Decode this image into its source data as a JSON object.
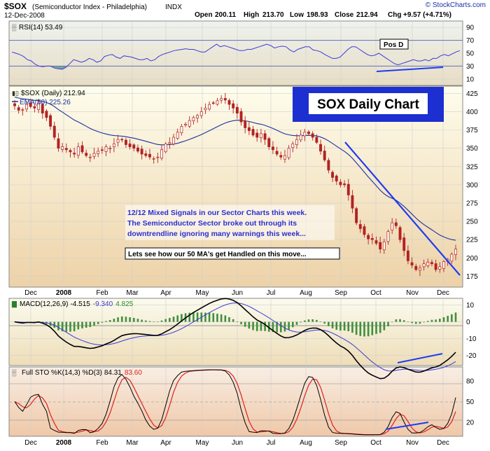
{
  "header": {
    "symbol": "$SOX",
    "name": "(Semiconductor Index - Philadelphia)",
    "exchange": "INDX",
    "date": "12-Dec-2008",
    "open_label": "Open",
    "open": "200.11",
    "high_label": "High",
    "high": "213.70",
    "low_label": "Low",
    "low": "198.93",
    "close_label": "Close",
    "close": "212.94",
    "chg_label": "Chg",
    "chg": "+9.57 (+4.71%)",
    "watermark": "© StockCharts.com"
  },
  "chart_data": [
    {
      "type": "line",
      "panel": "RSI",
      "legend": "RSI(14) 53.49",
      "yticks": [
        90,
        70,
        50,
        30,
        10
      ],
      "ylim": [
        0,
        100
      ],
      "reference_lines": [
        70,
        30
      ],
      "annotation": "Pos D",
      "series": [
        {
          "name": "RSI(14)",
          "values": [
            52,
            50,
            48,
            45,
            40,
            38,
            33,
            30,
            29,
            30,
            30,
            27,
            26,
            25,
            28,
            34,
            40,
            38,
            36,
            38,
            42,
            40,
            36,
            38,
            45,
            47,
            48,
            44,
            42,
            46,
            45,
            44,
            42,
            40,
            40,
            42,
            38,
            40,
            45,
            48,
            50,
            52,
            54,
            55,
            56,
            57,
            56,
            56,
            54,
            52,
            52,
            56,
            60,
            64,
            60,
            62,
            60,
            58,
            56,
            54,
            54,
            56,
            56,
            58,
            60,
            62,
            64,
            62,
            58,
            60,
            61,
            60,
            55,
            52,
            56,
            58,
            60,
            60,
            55,
            54,
            52,
            48,
            45,
            42,
            42,
            44,
            50,
            56,
            60,
            60,
            56,
            52,
            48,
            46,
            47,
            50,
            46,
            42,
            38,
            34,
            32,
            34,
            36,
            38,
            40,
            38,
            38,
            40,
            38,
            42,
            42,
            46,
            48,
            46,
            49,
            52,
            54
          ]
        }
      ]
    },
    {
      "type": "candlestick",
      "panel": "Price",
      "legend": "$SOX (Daily) 212.94",
      "ma_legend": "EMA(50) 225.26",
      "title_box": "SOX Daily Chart",
      "yticks": [
        425,
        400,
        375,
        350,
        325,
        300,
        275,
        250,
        225,
        200,
        175
      ],
      "ylim": [
        160,
        435
      ],
      "x_labels": [
        "Dec",
        "2008",
        "Feb",
        "Mar",
        "Apr",
        "May",
        "Jun",
        "Jul",
        "Aug",
        "Sep",
        "Oct",
        "Nov",
        "Dec"
      ],
      "annotation_main": [
        "12/12  Mixed Signals in our Sector Charts this week.",
        "The Semiconductor Sector broke out through its",
        "downtrendline ignoring many warnings this week..."
      ],
      "annotation_small": "Lets see how our 50 MA's get Handled on this move...",
      "close_values": [
        408,
        402,
        403,
        410,
        407,
        405,
        412,
        398,
        392,
        380,
        365,
        350,
        352,
        348,
        345,
        342,
        352,
        345,
        340,
        338,
        343,
        346,
        347,
        352,
        350,
        356,
        362,
        362,
        355,
        352,
        350,
        346,
        342,
        340,
        338,
        336,
        338,
        348,
        356,
        358,
        365,
        372,
        380,
        383,
        388,
        392,
        395,
        400,
        405,
        410,
        412,
        415,
        418,
        416,
        410,
        405,
        398,
        386,
        378,
        374,
        368,
        365,
        370,
        362,
        352,
        348,
        342,
        338,
        340,
        350,
        356,
        362,
        368,
        372,
        370,
        365,
        358,
        346,
        334,
        320,
        310,
        305,
        300,
        300,
        286,
        268,
        248,
        240,
        232,
        226,
        225,
        220,
        212,
        222,
        236,
        248,
        244,
        225,
        210,
        196,
        190,
        184,
        186,
        192,
        194,
        192,
        184,
        188,
        195,
        198,
        205,
        212
      ]
    },
    {
      "type": "line",
      "panel": "MACD",
      "legend_prefix": "MACD(12,26,9)",
      "macd_value": "-4.515",
      "signal_value": "-9.340",
      "hist_value": "4.825",
      "yticks": [
        10,
        0,
        -10,
        -20
      ],
      "ylim": [
        -26,
        14
      ]
    },
    {
      "type": "line",
      "panel": "Full STO",
      "legend_prefix": "Full STO %K(14,3) %D(3)",
      "k_value": "84.31",
      "d_value": "83.60",
      "yticks": [
        80,
        50,
        20
      ],
      "ylim": [
        0,
        100
      ],
      "x_labels": [
        "Dec",
        "2008",
        "Feb",
        "Mar",
        "Apr",
        "May",
        "Jun",
        "Jul",
        "Aug",
        "Sep",
        "Oct",
        "Nov",
        "Dec"
      ]
    }
  ],
  "colors": {
    "price_bg_top": "#fdfde8",
    "price_bg_bottom": "#efd8b0",
    "grid": "#c9c9c9",
    "candle": "#b22222",
    "ema": "#1b2fa3",
    "trend": "#1e3cf0",
    "macd_line": "#000000",
    "signal_line": "#3b3bd8",
    "hist_pos": "#2e7d2e",
    "sto_k": "#000000",
    "sto_d": "#e02020",
    "legend_blue": "#1b2fa3",
    "legend_red": "#e02020",
    "legend_green": "#2e8b2e",
    "title_box_bg": "#1d2fd0",
    "annotation_text": "#2b2fd0"
  }
}
